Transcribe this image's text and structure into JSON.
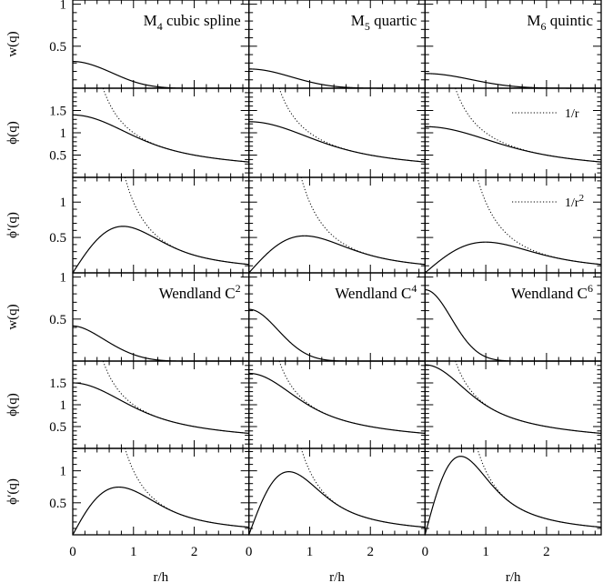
{
  "chart_data": {
    "type": "line",
    "layout": "grid of 6 rows x 3 columns",
    "xlabel": "r/h",
    "x_ticks": [
      0,
      1,
      2
    ],
    "xlim": [
      0,
      2.9
    ],
    "rows": [
      {
        "ylabel": "w(q)",
        "yticks": [
          "0.5",
          "1"
        ],
        "ytick_values": [
          0.5,
          1
        ],
        "ylim": [
          0,
          1.05
        ]
      },
      {
        "ylabel": "ϕ(q)",
        "yticks": [
          "0.5",
          "1",
          "1.5"
        ],
        "ytick_values": [
          0.5,
          1,
          1.5
        ],
        "ylim": [
          0,
          2
        ]
      },
      {
        "ylabel": "ϕ′(q)",
        "yticks": [
          "0.5",
          "1"
        ],
        "ytick_values": [
          0.5,
          1
        ],
        "ylim": [
          0,
          1.35
        ]
      },
      {
        "ylabel": "w(q)",
        "yticks": [
          "0.5",
          "1"
        ],
        "ytick_values": [
          0.5,
          1
        ],
        "ylim": [
          0,
          1.05
        ]
      },
      {
        "ylabel": "ϕ(q)",
        "yticks": [
          "0.5",
          "1",
          "1.5"
        ],
        "ytick_values": [
          0.5,
          1,
          1.5
        ],
        "ylim": [
          0,
          2
        ]
      },
      {
        "ylabel": "ϕ′(q)",
        "yticks": [
          "0.5",
          "1"
        ],
        "ytick_values": [
          0.5,
          1
        ],
        "ylim": [
          0,
          1.35
        ]
      }
    ],
    "kernel_titles": [
      {
        "main": "M",
        "sub": "4",
        "rest": " cubic spline"
      },
      {
        "main": "M",
        "sub": "5",
        "rest": " quartic"
      },
      {
        "main": "M",
        "sub": "6",
        "rest": " quintic"
      },
      {
        "main": "Wendland C",
        "sup": "2",
        "rest": ""
      },
      {
        "main": "Wendland C",
        "sup": "4",
        "rest": ""
      },
      {
        "main": "Wendland C",
        "sup": "6",
        "rest": ""
      }
    ],
    "reference_curves": [
      {
        "label": "1/r",
        "shown_in_row": 1
      },
      {
        "label": "1/r",
        "sup": "2",
        "shown_in_row": 2
      }
    ],
    "kernel_peaks": {
      "w_at_zero": [
        0.32,
        0.24,
        0.19,
        0.42,
        0.6,
        0.84
      ],
      "phi_at_zero": [
        1.4,
        1.25,
        1.12,
        1.5,
        1.72,
        1.87
      ],
      "dphi_peak": [
        {
          "x": 0.78,
          "y": 0.65
        },
        {
          "x": 0.92,
          "y": 0.52
        },
        {
          "x": 1.0,
          "y": 0.43
        },
        {
          "x": 0.8,
          "y": 0.74
        },
        {
          "x": 0.64,
          "y": 0.99
        },
        {
          "x": 0.57,
          "y": 1.23
        }
      ]
    }
  }
}
